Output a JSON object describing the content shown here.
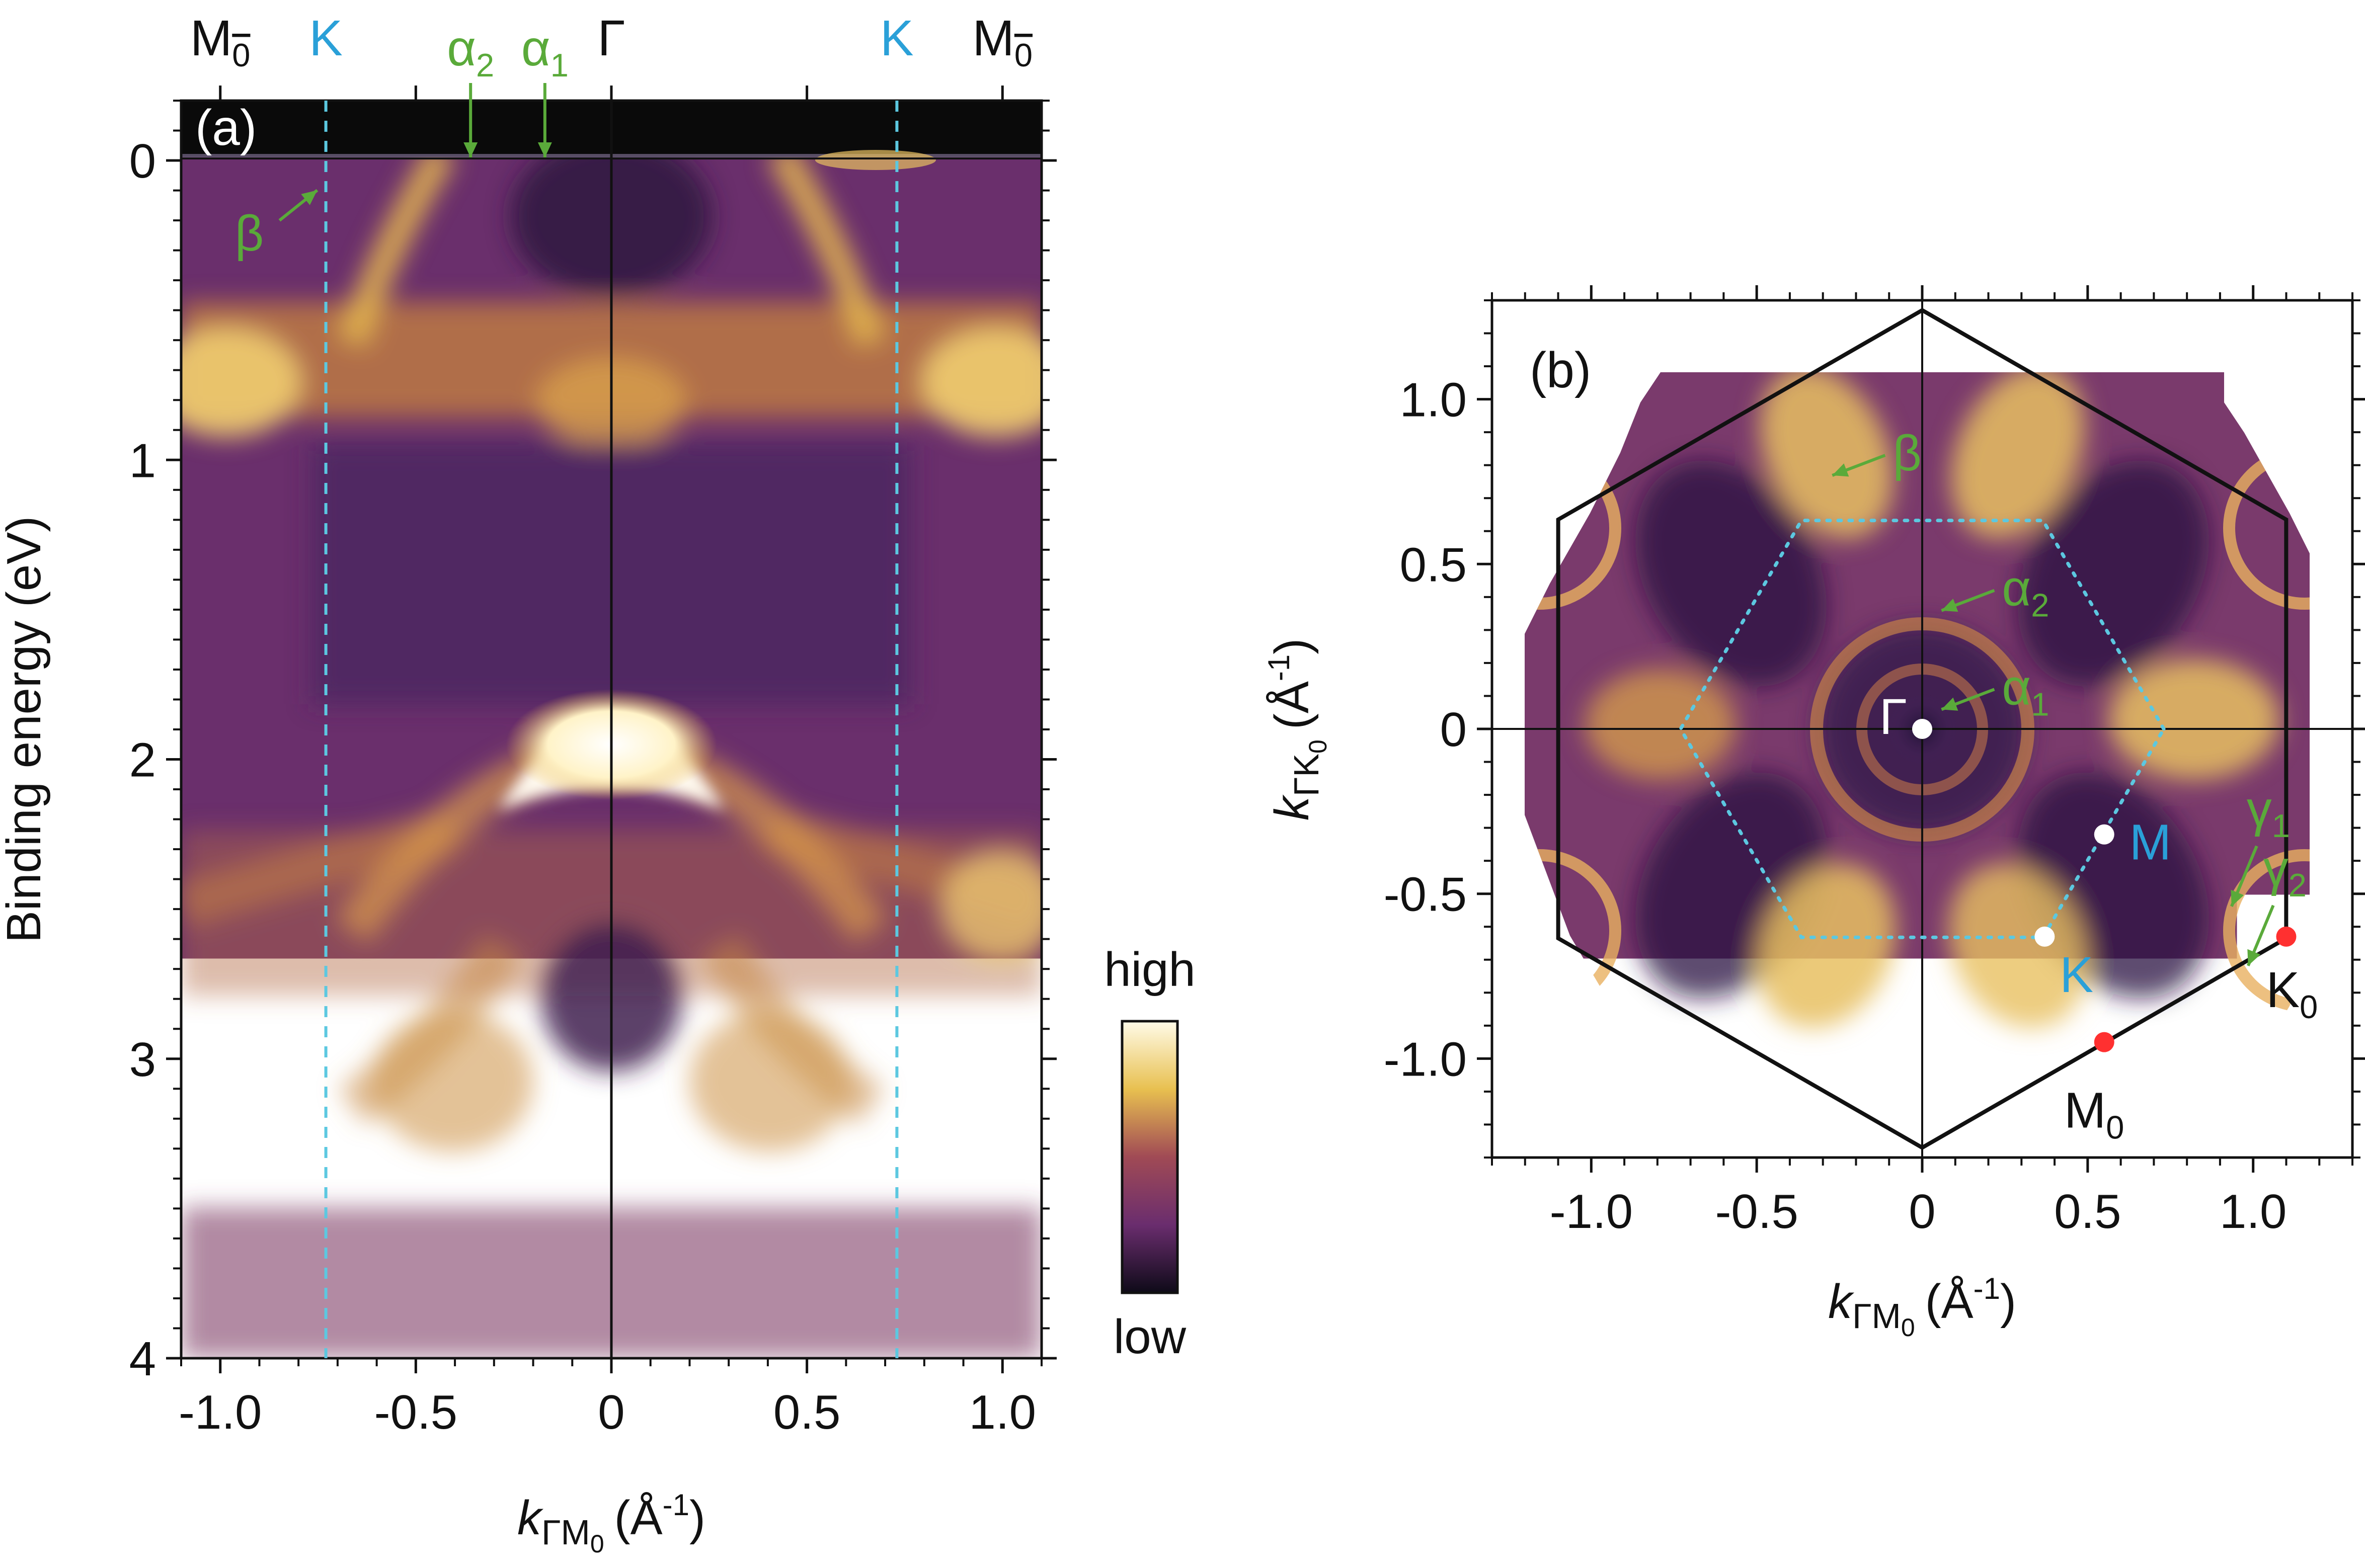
{
  "chart_data": [
    {
      "type": "heatmap",
      "panel_label": "(a)",
      "xlabel_main": "k",
      "xlabel_sub": "ΓM",
      "xlabel_subsub": "0",
      "xlabel_unit": "(Å",
      "xlabel_exp": "-1",
      "xlabel_close": ")",
      "ylabel": "Binding energy (eV)",
      "xlim": [
        -1.1,
        1.1
      ],
      "ylim": [
        4,
        -0.2
      ],
      "xticks": [
        -1.0,
        -0.5,
        0,
        0.5,
        1.0
      ],
      "xtick_labels": [
        "-1.0",
        "-0.5",
        "0",
        "0.5",
        "1.0"
      ],
      "yticks": [
        0,
        1,
        2,
        3,
        4
      ],
      "ytick_labels": [
        "0",
        "1",
        "2",
        "3",
        "4"
      ],
      "top_labels": [
        {
          "name": "M0",
          "text": "M",
          "sub": "0",
          "x": -1.0,
          "color": "#111111",
          "overline": true
        },
        {
          "name": "K",
          "text": "K",
          "sub": "",
          "x": -0.73,
          "color": "#2aa0d8",
          "overline": true
        },
        {
          "name": "Gamma",
          "text": "Γ",
          "sub": "",
          "x": 0,
          "color": "#111111",
          "overline": true
        },
        {
          "name": "K",
          "text": "K",
          "sub": "",
          "x": 0.73,
          "color": "#2aa0d8",
          "overline": true
        },
        {
          "name": "M0",
          "text": "M",
          "sub": "0",
          "x": 1.0,
          "color": "#111111",
          "overline": true
        }
      ],
      "k_lines_x": [
        -0.73,
        0.73
      ],
      "annotations": [
        {
          "text": "α",
          "sub": "2",
          "x": -0.36,
          "y": 0.0,
          "color": "#5aaa3a"
        },
        {
          "text": "α",
          "sub": "1",
          "x": -0.17,
          "y": 0.0,
          "color": "#5aaa3a"
        },
        {
          "text": "β",
          "sub": "",
          "x": -0.9,
          "y": 0.2,
          "color": "#5aaa3a"
        }
      ],
      "colorbar": {
        "high_label": "high",
        "low_label": "low"
      },
      "features": [
        {
          "desc": "bright band top",
          "x": 0,
          "y": 1.98,
          "intensity": 1.0
        },
        {
          "desc": "flat band",
          "y": 0.75,
          "intensity": 0.6
        }
      ]
    },
    {
      "type": "heatmap",
      "panel_label": "(b)",
      "xlabel_main": "k",
      "xlabel_sub": "ΓM",
      "xlabel_subsub": "0",
      "xlabel_unit": "(Å",
      "xlabel_exp": "-1",
      "xlabel_close": ")",
      "ylabel_main": "k",
      "ylabel_sub": "ΓK",
      "ylabel_subsub": "0",
      "ylabel_unit": "(Å",
      "ylabel_exp": "-1",
      "ylabel_close": ")",
      "xlim": [
        -1.3,
        1.3
      ],
      "ylim": [
        -1.3,
        1.3
      ],
      "xticks": [
        -1.0,
        -0.5,
        0,
        0.5,
        1.0
      ],
      "xtick_labels": [
        "-1.0",
        "-0.5",
        "0",
        "0.5",
        "1.0"
      ],
      "yticks": [
        -1.0,
        -0.5,
        0,
        0.5,
        1.0
      ],
      "ytick_labels": [
        "-1.0",
        "-0.5",
        "0",
        "0.5",
        "1.0"
      ],
      "large_hexagon_radius": 1.27,
      "small_hexagon_radius": 0.73,
      "points": [
        {
          "label": "Γ",
          "sub": "",
          "x": 0,
          "y": 0,
          "color": "#ffffff",
          "label_color": "#ffffff"
        },
        {
          "label": "M",
          "sub": "",
          "x": 0.55,
          "y": -0.32,
          "color": "#ffffff",
          "label_color": "#2aa0d8"
        },
        {
          "label": "K",
          "sub": "",
          "x": 0.37,
          "y": -0.63,
          "color": "#ffffff",
          "label_color": "#2aa0d8"
        },
        {
          "label": "K",
          "sub": "0",
          "x": 1.1,
          "y": -0.63,
          "color": "#ff3030",
          "label_color": "#111111"
        },
        {
          "label": "M",
          "sub": "0",
          "x": 0.55,
          "y": -0.95,
          "color": "#ff3030",
          "label_color": "#111111"
        }
      ],
      "annotations": [
        {
          "text": "β",
          "sub": "",
          "x": -0.15,
          "y": 0.83,
          "color": "#5aaa3a"
        },
        {
          "text": "α",
          "sub": "2",
          "x": 0.18,
          "y": 0.42,
          "color": "#5aaa3a"
        },
        {
          "text": "α",
          "sub": "1",
          "x": 0.18,
          "y": 0.12,
          "color": "#5aaa3a"
        },
        {
          "text": "γ",
          "sub": "1",
          "x": 0.95,
          "y": -0.34,
          "color": "#5aaa3a"
        },
        {
          "text": "γ",
          "sub": "2",
          "x": 1.0,
          "y": -0.52,
          "color": "#5aaa3a"
        }
      ]
    }
  ],
  "colors": {
    "map_low": "#1e1030",
    "map_mid": "#7a2f6b",
    "map_high": "#f2c34f",
    "map_white": "#fffde8",
    "k_line": "#5cc8e0"
  }
}
